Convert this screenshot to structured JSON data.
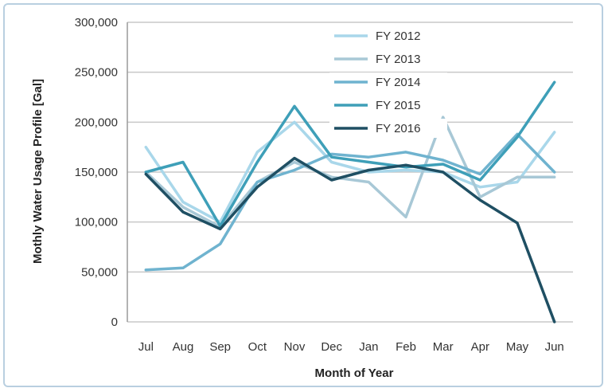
{
  "chart_data": {
    "type": "line",
    "title": "",
    "xlabel": "Month of Year",
    "ylabel": "Mothly Water Usage Profile [Gal]",
    "categories": [
      "Jul",
      "Aug",
      "Sep",
      "Oct",
      "Nov",
      "Dec",
      "Jan",
      "Feb",
      "Mar",
      "Apr",
      "May",
      "Jun"
    ],
    "ylim": [
      0,
      300000
    ],
    "yticks": [
      0,
      50000,
      100000,
      150000,
      200000,
      250000,
      300000
    ],
    "ytick_labels": [
      "0",
      "50,000",
      "100,000",
      "150,000",
      "200,000",
      "250,000",
      "300,000"
    ],
    "grid": true,
    "legend_position": "top-center",
    "series": [
      {
        "name": "FY 2012",
        "color": "#a9d7ea",
        "values": [
          175000,
          120000,
          100000,
          170000,
          200000,
          160000,
          150000,
          152000,
          150000,
          135000,
          140000,
          190000
        ]
      },
      {
        "name": "FY 2013",
        "color": "#a8c8d6",
        "values": [
          150000,
          115000,
          95000,
          140000,
          160000,
          145000,
          140000,
          105000,
          205000,
          125000,
          145000,
          145000
        ]
      },
      {
        "name": "FY 2014",
        "color": "#6fb3cf",
        "values": [
          52000,
          54000,
          78000,
          140000,
          152000,
          168000,
          165000,
          170000,
          162000,
          148000,
          188000,
          150000
        ]
      },
      {
        "name": "FY 2015",
        "color": "#3e9fb8",
        "values": [
          150000,
          160000,
          96000,
          160000,
          216000,
          165000,
          160000,
          155000,
          158000,
          142000,
          185000,
          240000
        ]
      },
      {
        "name": "FY 2016",
        "color": "#1f4f63",
        "values": [
          148000,
          110000,
          93000,
          135000,
          164000,
          142000,
          152000,
          157000,
          150000,
          122000,
          99000,
          0
        ]
      }
    ]
  }
}
